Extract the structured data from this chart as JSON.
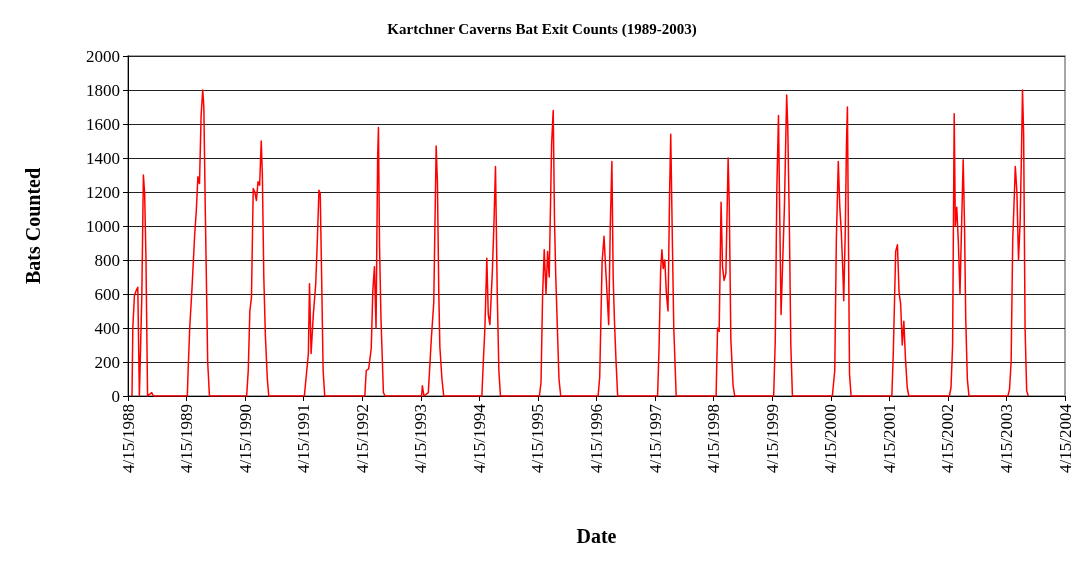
{
  "chart_data": {
    "type": "line",
    "title": "Kartchner Caverns Bat Exit Counts (1989-2003)",
    "xlabel": "Date",
    "ylabel": "Bats Counted",
    "x": [
      "1988-05-10",
      "1988-05-15",
      "1988-05-25",
      "1988-06-05",
      "1988-06-15",
      "1988-06-25",
      "1988-07-10",
      "1988-07-20",
      "1988-07-28",
      "1988-08-05",
      "1988-08-15",
      "1988-09-10",
      "1988-09-20",
      "1989-04-20",
      "1989-04-25",
      "1989-05-05",
      "1989-05-20",
      "1989-06-05",
      "1989-06-15",
      "1989-06-25",
      "1989-07-05",
      "1989-07-15",
      "1989-07-25",
      "1989-08-01",
      "1989-08-10",
      "1989-08-25",
      "1989-09-05",
      "1990-04-25",
      "1990-05-05",
      "1990-05-15",
      "1990-05-25",
      "1990-06-05",
      "1990-06-15",
      "1990-06-25",
      "1990-07-05",
      "1990-07-15",
      "1990-07-25",
      "1990-08-01",
      "1990-08-10",
      "1990-08-20",
      "1990-09-01",
      "1990-09-10",
      "1991-04-20",
      "1991-05-05",
      "1991-05-15",
      "1991-05-22",
      "1991-06-01",
      "1991-06-15",
      "1991-06-30",
      "1991-07-10",
      "1991-07-20",
      "1991-07-28",
      "1991-08-05",
      "1991-08-15",
      "1991-08-25",
      "1992-05-01",
      "1992-05-10",
      "1992-05-25",
      "1992-06-10",
      "1992-06-20",
      "1992-06-30",
      "1992-07-10",
      "1992-07-20",
      "1992-07-25",
      "1992-08-01",
      "1992-08-10",
      "1992-08-25",
      "1992-09-05",
      "1993-04-20",
      "1993-04-25",
      "1993-05-05",
      "1993-06-01",
      "1993-06-20",
      "1993-07-05",
      "1993-07-20",
      "1993-07-28",
      "1993-08-05",
      "1993-08-12",
      "1993-08-25",
      "1993-09-05",
      "1994-05-01",
      "1994-05-10",
      "1994-05-20",
      "1994-06-01",
      "1994-06-10",
      "1994-06-20",
      "1994-07-05",
      "1994-07-15",
      "1994-07-25",
      "1994-08-05",
      "1994-08-15",
      "1994-08-25",
      "1995-04-25",
      "1995-05-05",
      "1995-05-15",
      "1995-05-25",
      "1995-06-05",
      "1995-06-15",
      "1995-06-25",
      "1995-07-10",
      "1995-07-20",
      "1995-07-28",
      "1995-08-05",
      "1995-08-15",
      "1995-08-25",
      "1995-09-05",
      "1996-04-25",
      "1996-05-05",
      "1996-05-20",
      "1996-06-01",
      "1996-06-10",
      "1996-06-20",
      "1996-06-30",
      "1996-07-10",
      "1996-07-20",
      "1996-07-28",
      "1996-08-05",
      "1996-08-15",
      "1996-08-25",
      "1997-05-01",
      "1997-05-10",
      "1997-05-20",
      "1997-05-28",
      "1997-06-05",
      "1997-06-15",
      "1997-06-25",
      "1997-07-05",
      "1997-07-15",
      "1997-07-22",
      "1997-08-01",
      "1997-08-10",
      "1997-08-25",
      "1998-05-01",
      "1998-05-10",
      "1998-05-20",
      "1998-06-01",
      "1998-06-10",
      "1998-06-20",
      "1998-07-01",
      "1998-07-15",
      "1998-07-22",
      "1998-08-01",
      "1998-08-15",
      "1998-08-25",
      "1999-04-25",
      "1999-05-05",
      "1999-05-15",
      "1999-05-25",
      "1999-06-01",
      "1999-06-10",
      "1999-06-20",
      "1999-07-01",
      "1999-07-15",
      "1999-07-22",
      "1999-08-01",
      "1999-08-10",
      "1999-08-20",
      "2000-04-25",
      "2000-05-10",
      "2000-05-20",
      "2000-06-01",
      "2000-06-10",
      "2000-06-20",
      "2000-06-30",
      "2000-07-05",
      "2000-07-15",
      "2000-07-22",
      "2000-07-28",
      "2000-08-10",
      "2000-08-20",
      "2001-05-01",
      "2001-05-10",
      "2001-05-25",
      "2001-06-05",
      "2001-06-15",
      "2001-06-25",
      "2001-07-05",
      "2001-07-15",
      "2001-07-25",
      "2001-08-05",
      "2001-08-15",
      "2002-04-25",
      "2002-05-05",
      "2002-05-15",
      "2002-05-25",
      "2002-06-01",
      "2002-06-10",
      "2002-06-20",
      "2002-06-30",
      "2002-07-10",
      "2002-07-20",
      "2002-07-28",
      "2002-08-05",
      "2002-08-15",
      "2002-08-25",
      "2003-04-25",
      "2003-05-05",
      "2003-05-15",
      "2003-05-25",
      "2003-06-01",
      "2003-06-10",
      "2003-06-20",
      "2003-06-30",
      "2003-07-10",
      "2003-07-18",
      "2003-07-25",
      "2003-08-01",
      "2003-08-10",
      "2003-08-20",
      "2003-08-30"
    ],
    "series": [
      {
        "color": "#ff0000",
        "values": [
          0,
          400,
          590,
          620,
          640,
          0,
          580,
          1300,
          1190,
          810,
          0,
          20,
          0,
          0,
          150,
          400,
          650,
          950,
          1090,
          1290,
          1250,
          1650,
          1800,
          1700,
          1100,
          200,
          0,
          0,
          150,
          500,
          580,
          1220,
          1200,
          1150,
          1260,
          1240,
          1500,
          1300,
          700,
          350,
          100,
          0,
          0,
          150,
          250,
          660,
          250,
          480,
          660,
          920,
          1210,
          1190,
          740,
          150,
          0,
          0,
          150,
          160,
          280,
          620,
          760,
          400,
          1400,
          1580,
          870,
          450,
          20,
          0,
          0,
          60,
          0,
          20,
          340,
          550,
          1470,
          1250,
          630,
          290,
          100,
          0,
          0,
          200,
          400,
          810,
          480,
          420,
          720,
          1000,
          1350,
          600,
          150,
          0,
          0,
          80,
          600,
          860,
          600,
          850,
          700,
          1480,
          1680,
          1040,
          700,
          400,
          100,
          0,
          0,
          110,
          790,
          940,
          770,
          600,
          420,
          1000,
          1380,
          700,
          440,
          200,
          0,
          0,
          280,
          740,
          860,
          750,
          800,
          600,
          500,
          1200,
          1540,
          920,
          400,
          0,
          0,
          400,
          380,
          1140,
          760,
          680,
          720,
          1400,
          1130,
          330,
          60,
          0,
          0,
          330,
          1230,
          1650,
          1120,
          480,
          780,
          1110,
          1770,
          1580,
          1000,
          300,
          0,
          0,
          150,
          920,
          1380,
          1120,
          960,
          720,
          560,
          990,
          1480,
          1700,
          130,
          0,
          0,
          250,
          850,
          890,
          610,
          540,
          300,
          440,
          220,
          50,
          0,
          0,
          50,
          300,
          1660,
          1000,
          1110,
          900,
          600,
          1000,
          1390,
          1020,
          450,
          100,
          0,
          0,
          40,
          200,
          920,
          1100,
          1350,
          1200,
          800,
          1020,
          1400,
          1800,
          1540,
          400,
          30,
          0
        ]
      }
    ],
    "xlim": [
      "1988-04-15",
      "2004-04-15"
    ],
    "xticks": [
      {
        "value": "1988-04-15",
        "label": "4/15/1988"
      },
      {
        "value": "1989-04-15",
        "label": "4/15/1989"
      },
      {
        "value": "1990-04-15",
        "label": "4/15/1990"
      },
      {
        "value": "1991-04-15",
        "label": "4/15/1991"
      },
      {
        "value": "1992-04-15",
        "label": "4/15/1992"
      },
      {
        "value": "1993-04-15",
        "label": "4/15/1993"
      },
      {
        "value": "1994-04-15",
        "label": "4/15/1994"
      },
      {
        "value": "1995-04-15",
        "label": "4/15/1995"
      },
      {
        "value": "1996-04-15",
        "label": "4/15/1996"
      },
      {
        "value": "1997-04-15",
        "label": "4/15/1997"
      },
      {
        "value": "1998-04-15",
        "label": "4/15/1998"
      },
      {
        "value": "1999-04-15",
        "label": "4/15/1999"
      },
      {
        "value": "2000-04-15",
        "label": "4/15/2000"
      },
      {
        "value": "2001-04-15",
        "label": "4/15/2001"
      },
      {
        "value": "2002-04-15",
        "label": "4/15/2002"
      },
      {
        "value": "2003-04-15",
        "label": "4/15/2003"
      },
      {
        "value": "2004-04-15",
        "label": "4/15/2004"
      }
    ],
    "ylim": [
      0,
      2000
    ],
    "yticks": [
      0,
      200,
      400,
      600,
      800,
      1000,
      1200,
      1400,
      1600,
      1800,
      2000
    ],
    "grid": "y",
    "marker": "none",
    "line_style": "solid"
  }
}
